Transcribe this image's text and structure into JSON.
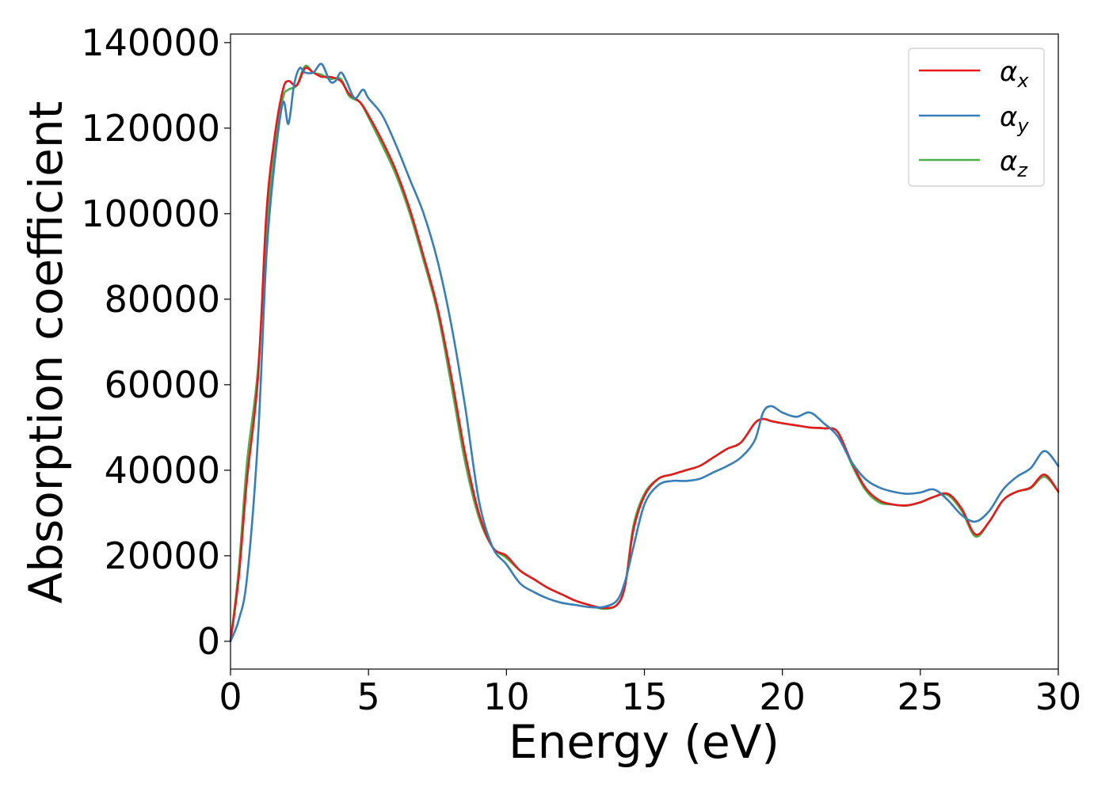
{
  "chart_data": {
    "type": "line",
    "title": "",
    "xlabel": "Energy (eV)",
    "ylabel": "Absorption coefficient",
    "xlim": [
      0,
      30
    ],
    "ylim": [
      -6500,
      142000
    ],
    "xticks": [
      0,
      5,
      10,
      15,
      20,
      25,
      30
    ],
    "xtick_labels": [
      "0",
      "5",
      "10",
      "15",
      "20",
      "25",
      "30"
    ],
    "yticks": [
      0,
      20000,
      40000,
      60000,
      80000,
      100000,
      120000,
      140000
    ],
    "ytick_labels": [
      "0",
      "20000",
      "40000",
      "60000",
      "80000",
      "100000",
      "120000",
      "140000"
    ],
    "grid": false,
    "legend_position": "top-right",
    "series": [
      {
        "name": "α_x",
        "symbol": "α",
        "subscript": "x",
        "color": "#e41a1c",
        "x": [
          0,
          0.3,
          0.6,
          1.0,
          1.3,
          1.6,
          1.9,
          2.1,
          2.4,
          2.7,
          3.0,
          3.3,
          3.6,
          4.0,
          4.3,
          4.7,
          5.0,
          5.5,
          6.0,
          6.5,
          7.0,
          7.5,
          8.0,
          8.5,
          9.0,
          9.5,
          10.0,
          10.5,
          11.0,
          11.5,
          12.0,
          12.5,
          13.0,
          13.5,
          14.0,
          14.3,
          14.6,
          15.0,
          15.5,
          16.0,
          16.5,
          17.0,
          17.5,
          18.0,
          18.5,
          19.0,
          19.3,
          19.6,
          20.0,
          20.5,
          21.0,
          21.5,
          22.0,
          22.5,
          23.0,
          23.5,
          24.0,
          24.5,
          25.0,
          25.5,
          26.0,
          26.5,
          27.0,
          27.5,
          28.0,
          28.5,
          29.0,
          29.5,
          30.0
        ],
        "values": [
          0,
          15000,
          38000,
          62000,
          100000,
          118000,
          129000,
          131000,
          130000,
          134000,
          133000,
          132000,
          132000,
          131000,
          128000,
          126000,
          123000,
          117000,
          110000,
          101000,
          90000,
          78000,
          62000,
          44000,
          30000,
          22000,
          20000,
          16500,
          14500,
          12500,
          11000,
          9500,
          8500,
          7800,
          8500,
          13000,
          26000,
          34000,
          38000,
          39000,
          40000,
          41000,
          43000,
          45000,
          46500,
          51000,
          52000,
          51500,
          51000,
          50500,
          50000,
          49800,
          49000,
          42000,
          36000,
          33000,
          32000,
          31800,
          32500,
          33800,
          34500,
          31000,
          25000,
          28000,
          33000,
          35000,
          36000,
          39000,
          35000
        ]
      },
      {
        "name": "α_y",
        "symbol": "α",
        "subscript": "y",
        "color": "#377eb8",
        "x": [
          0,
          0.3,
          0.6,
          1.0,
          1.3,
          1.6,
          1.9,
          2.1,
          2.3,
          2.5,
          2.7,
          3.0,
          3.3,
          3.6,
          3.8,
          4.0,
          4.2,
          4.5,
          4.8,
          5.0,
          5.5,
          6.0,
          6.5,
          7.0,
          7.5,
          8.0,
          8.5,
          9.0,
          9.5,
          10.0,
          10.5,
          11.0,
          11.5,
          12.0,
          12.5,
          13.0,
          13.5,
          14.0,
          14.3,
          14.6,
          15.0,
          15.5,
          16.0,
          16.5,
          17.0,
          17.5,
          18.0,
          18.5,
          19.0,
          19.3,
          19.6,
          20.0,
          20.5,
          21.0,
          21.5,
          22.0,
          22.5,
          23.0,
          23.5,
          24.0,
          24.5,
          25.0,
          25.5,
          26.0,
          26.5,
          27.0,
          27.5,
          28.0,
          28.5,
          29.0,
          29.5,
          30.0
        ],
        "values": [
          0,
          5000,
          15000,
          48000,
          90000,
          112000,
          126000,
          121000,
          130000,
          134000,
          133000,
          133000,
          135000,
          131000,
          131000,
          133000,
          131000,
          127000,
          129000,
          127000,
          123000,
          116000,
          108000,
          100000,
          89000,
          74000,
          55000,
          33000,
          22000,
          18000,
          13500,
          11500,
          10000,
          9000,
          8500,
          8000,
          8000,
          9500,
          14000,
          22000,
          32000,
          36500,
          37500,
          37500,
          38000,
          39500,
          41000,
          43000,
          47000,
          53500,
          55000,
          53500,
          52500,
          53500,
          51000,
          48000,
          42000,
          38000,
          36000,
          35000,
          34500,
          34800,
          35500,
          33000,
          29500,
          28000,
          30500,
          35500,
          38500,
          40500,
          44500,
          41000
        ]
      },
      {
        "name": "α_z",
        "symbol": "α",
        "subscript": "z",
        "color": "#4daf4a",
        "x": [
          0,
          0.3,
          0.6,
          1.0,
          1.3,
          1.6,
          1.9,
          2.1,
          2.4,
          2.7,
          3.0,
          3.3,
          3.6,
          4.0,
          4.3,
          4.7,
          5.0,
          5.5,
          6.0,
          6.5,
          7.0,
          7.5,
          8.0,
          8.5,
          9.0,
          9.5,
          10.0,
          10.5,
          11.0,
          11.5,
          12.0,
          12.5,
          13.0,
          13.5,
          14.0,
          14.3,
          14.6,
          15.0,
          15.5,
          16.0,
          16.5,
          17.0,
          17.5,
          18.0,
          18.5,
          19.0,
          19.3,
          19.6,
          20.0,
          20.5,
          21.0,
          21.5,
          22.0,
          22.5,
          23.0,
          23.5,
          24.0,
          24.5,
          25.0,
          25.5,
          26.0,
          26.5,
          27.0,
          27.5,
          28.0,
          28.5,
          29.0,
          29.5,
          30.0
        ],
        "values": [
          0,
          17000,
          42000,
          64000,
          96000,
          115000,
          127000,
          129000,
          130000,
          134500,
          133000,
          132500,
          131500,
          131500,
          127500,
          126000,
          122500,
          116000,
          109000,
          100000,
          89000,
          77000,
          60000,
          42000,
          29000,
          22000,
          19500,
          16500,
          14500,
          12500,
          11000,
          9500,
          8500,
          7600,
          8500,
          13000,
          27000,
          34500,
          38000,
          39000,
          40000,
          41000,
          43000,
          45000,
          46500,
          51000,
          52000,
          51500,
          51000,
          50500,
          50000,
          49800,
          49000,
          41500,
          35500,
          32500,
          32000,
          31700,
          32500,
          33800,
          34200,
          30500,
          24500,
          28000,
          33000,
          35000,
          35800,
          38500,
          35000
        ]
      }
    ]
  }
}
